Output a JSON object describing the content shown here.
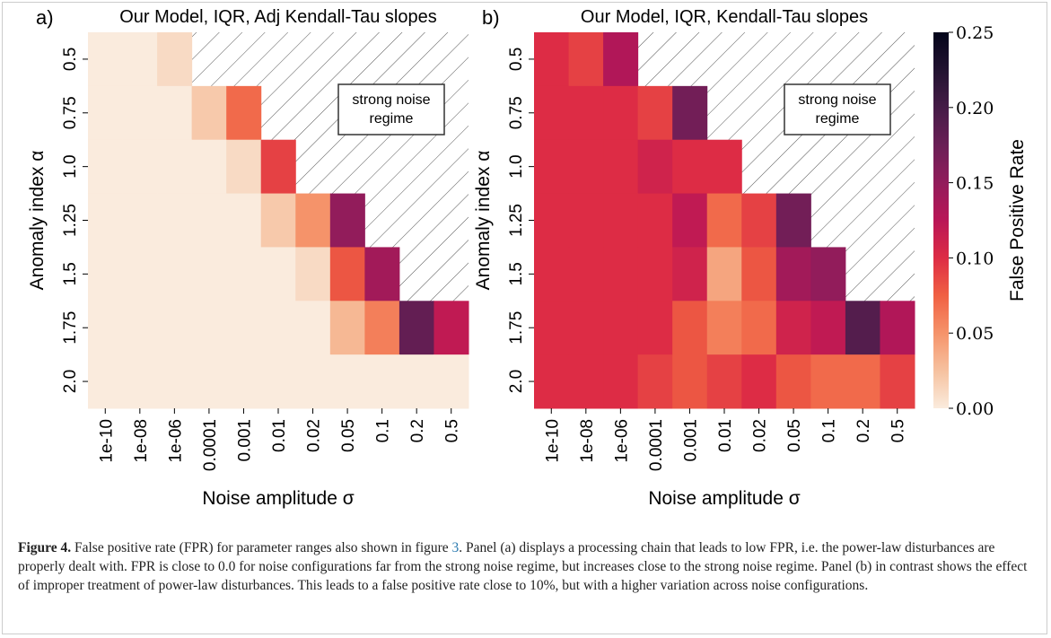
{
  "chart_data": [
    {
      "type": "heatmap",
      "panel_label": "a)",
      "title": "Our Model, IQR, Adj Kendall-Tau slopes",
      "x_label": "Noise amplitude σ",
      "y_label": "Anomaly index α",
      "x_categories": [
        "1e-10",
        "1e-08",
        "1e-06",
        "0.0001",
        "0.001",
        "0.01",
        "0.02",
        "0.05",
        "0.1",
        "0.2",
        "0.5"
      ],
      "y_categories": [
        "0.5",
        "0.75",
        "1.0",
        "1.25",
        "1.5",
        "1.75",
        "2.0"
      ],
      "clim": [
        0,
        0.25
      ],
      "annotation": [
        "strong noise",
        "regime"
      ],
      "z": [
        [
          0,
          0,
          0.01,
          null,
          null,
          null,
          null,
          null,
          null,
          null,
          null
        ],
        [
          0,
          0,
          0,
          0.02,
          0.07,
          null,
          null,
          null,
          null,
          null,
          null
        ],
        [
          0,
          0,
          0,
          0,
          0.01,
          0.09,
          null,
          null,
          null,
          null,
          null
        ],
        [
          0,
          0,
          0,
          0,
          0,
          0.02,
          0.05,
          0.15,
          null,
          null,
          null
        ],
        [
          0,
          0,
          0,
          0,
          0,
          0,
          0.01,
          0.08,
          0.14,
          null,
          null
        ],
        [
          0,
          0,
          0,
          0,
          0,
          0,
          0,
          0.03,
          0.06,
          0.18,
          0.12
        ],
        [
          0,
          0,
          0,
          0,
          0,
          0,
          0,
          0,
          0,
          0,
          0
        ]
      ]
    },
    {
      "type": "heatmap",
      "panel_label": "b)",
      "title": "Our Model, IQR, Kendall-Tau slopes",
      "x_label": "Noise amplitude σ",
      "y_label": "Anomaly index α",
      "x_categories": [
        "1e-10",
        "1e-08",
        "1e-06",
        "0.0001",
        "0.001",
        "0.01",
        "0.02",
        "0.05",
        "0.1",
        "0.2",
        "0.5"
      ],
      "y_categories": [
        "0.5",
        "0.75",
        "1.0",
        "1.25",
        "1.5",
        "1.75",
        "2.0"
      ],
      "clim": [
        0,
        0.25
      ],
      "annotation": [
        "strong noise",
        "regime"
      ],
      "z": [
        [
          0.1,
          0.09,
          0.13,
          null,
          null,
          null,
          null,
          null,
          null,
          null,
          null
        ],
        [
          0.1,
          0.1,
          0.1,
          0.09,
          0.17,
          null,
          null,
          null,
          null,
          null,
          null
        ],
        [
          0.1,
          0.1,
          0.1,
          0.11,
          0.1,
          0.1,
          null,
          null,
          null,
          null,
          null
        ],
        [
          0.1,
          0.1,
          0.1,
          0.1,
          0.12,
          0.07,
          0.09,
          0.17,
          null,
          null,
          null
        ],
        [
          0.1,
          0.1,
          0.1,
          0.1,
          0.11,
          0.04,
          0.08,
          0.14,
          0.15,
          null,
          null
        ],
        [
          0.1,
          0.1,
          0.1,
          0.1,
          0.08,
          0.06,
          0.07,
          0.11,
          0.12,
          0.19,
          0.13
        ],
        [
          0.1,
          0.1,
          0.1,
          0.09,
          0.08,
          0.09,
          0.1,
          0.08,
          0.07,
          0.07,
          0.09
        ]
      ]
    }
  ],
  "colorbar": {
    "label": "False Positive Rate",
    "lim": [
      0,
      0.25
    ],
    "ticks": [
      {
        "value": 0,
        "label": "0.00"
      },
      0.05,
      {
        "value": 0.1,
        "label": "0.10"
      },
      0.15,
      {
        "value": 0.2,
        "label": "0.20"
      },
      0.25
    ]
  },
  "caption": {
    "label": "Figure 4.",
    "text_before": "False positive rate (FPR) for parameter ranges also shown in figure ",
    "ref": "3",
    "text_after": ". Panel (a) displays a processing chain that leads to low FPR, i.e. the power-law disturbances are properly dealt with. FPR is close to 0.0 for noise configurations far from the strong noise regime, but increases close to the strong noise regime. Panel (b) in contrast shows the effect of improper treatment of power-law disturbances. This leads to a false positive rate close to 10%, but with a higher variation across noise configurations."
  }
}
